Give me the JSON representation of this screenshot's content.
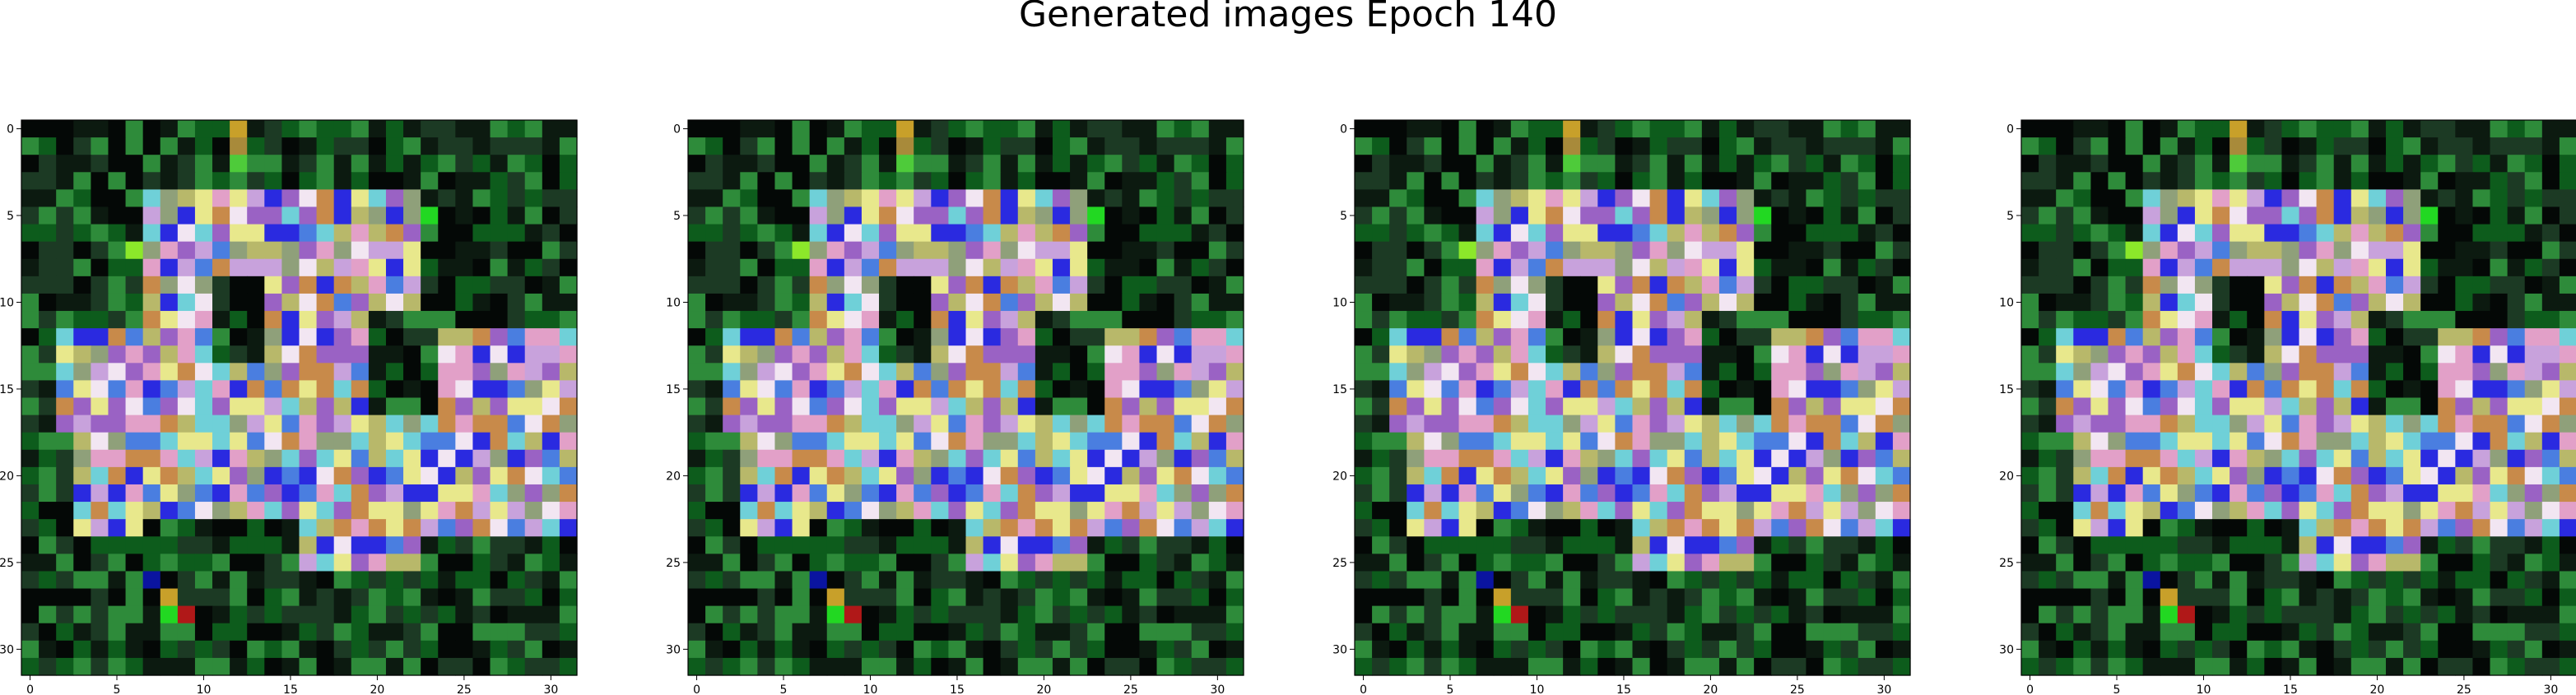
{
  "figure": {
    "title": "Generated images Epoch 140",
    "panel_count": 4,
    "image_grid_size": 32,
    "x_tick_labels": [
      "0",
      "5",
      "10",
      "15",
      "20",
      "25",
      "30"
    ],
    "y_tick_labels": [
      "0",
      "5",
      "10",
      "15",
      "20",
      "25",
      "30"
    ],
    "axis_color": "#000000",
    "background_color": "#ffffff",
    "palette": [
      "#040806",
      "#0c1a10",
      "#1c3a24",
      "#0d5c1c",
      "#2e8b3a",
      "#4e6f5a",
      "#8fa07a",
      "#b8b86a",
      "#e8e88c",
      "#f2e6f2",
      "#c8a2dc",
      "#9a62c4",
      "#2a2ae0",
      "#4a7ee0",
      "#6fd0d8",
      "#e2a0c8",
      "#c88a4a",
      "#c8a02a",
      "#b01818",
      "#22d822"
    ]
  }
}
